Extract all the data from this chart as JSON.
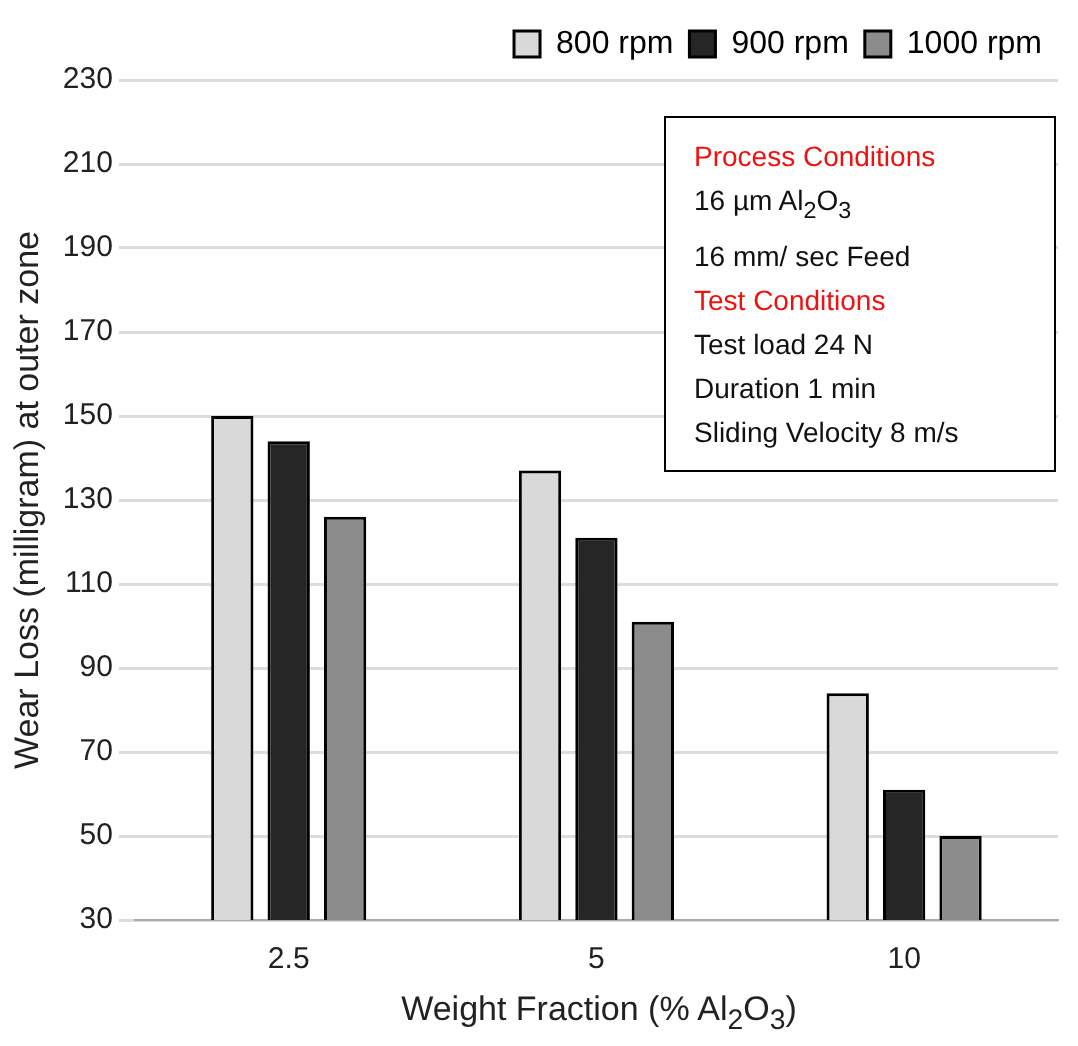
{
  "chart_data": {
    "type": "bar",
    "xlabel": "Weight Fraction (% Al$_{2}$O$_{3}$)",
    "ylabel": "Wear Loss (milligram) at outer zone",
    "categories": [
      "2.5",
      "5",
      "10"
    ],
    "series": [
      {
        "name": "800 rpm",
        "color": "#d9d9d9",
        "values": [
          150,
          137,
          84
        ]
      },
      {
        "name": "900 rpm",
        "color": "#262626",
        "values": [
          144,
          121,
          61
        ]
      },
      {
        "name": "1000 rpm",
        "color": "#8c8c8c",
        "values": [
          126,
          101,
          50
        ]
      }
    ],
    "ylim": [
      30,
      230
    ],
    "yticks": [
      30,
      50,
      70,
      90,
      110,
      130,
      150,
      170,
      190,
      210,
      230
    ],
    "grid": "y",
    "legend": "top right",
    "annotations": [
      "Process Conditions",
      "16 µm Al$_{2}$O$_{3}$",
      "16 mm/ sec Feed",
      "Test Conditions",
      "Test load 24 N",
      "Duration 1 min",
      "Sliding Velocity  8 m/s"
    ]
  }
}
